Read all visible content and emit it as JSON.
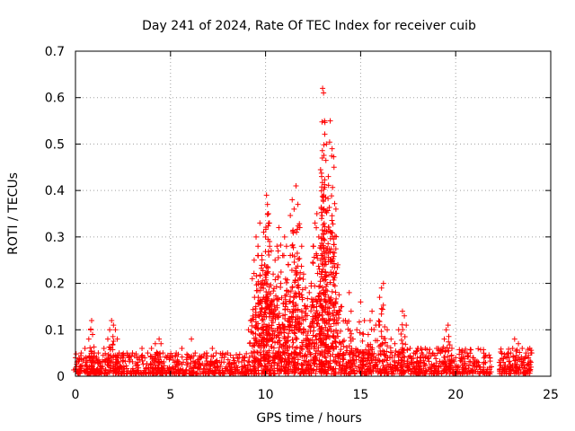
{
  "chart_data": {
    "type": "scatter",
    "title": "Day 241 of 2024, Rate Of TEC Index for receiver cuib",
    "xlabel": "GPS time / hours",
    "ylabel": "ROTI / TECUs",
    "xlim": [
      0,
      25
    ],
    "ylim": [
      0,
      0.7
    ],
    "x_ticks": [
      "0",
      "5",
      "10",
      "15",
      "20",
      "25"
    ],
    "y_ticks": [
      "0",
      "0.1",
      "0.2",
      "0.3",
      "0.4",
      "0.5",
      "0.6",
      "0.7"
    ],
    "grid": true,
    "legend": "none",
    "marker": "+",
    "color": "#ff0000",
    "series": [
      {
        "x": [
          0.0,
          0.3,
          0.5,
          0.7,
          0.8,
          0.85,
          0.9,
          1.0,
          1.2,
          1.5,
          1.7,
          1.8,
          1.9,
          2.0,
          2.1,
          2.2,
          2.3,
          2.5,
          2.8,
          3.0,
          3.3,
          3.5,
          3.8,
          4.0,
          4.2,
          4.4,
          4.5,
          4.6,
          4.8,
          5.0,
          5.3,
          5.6,
          5.9,
          6.1,
          6.3,
          6.6,
          6.9,
          7.2,
          7.4,
          7.7,
          8.0,
          8.3,
          8.6,
          8.9,
          9.1,
          9.3,
          9.4,
          9.5,
          9.6,
          9.7,
          9.8,
          9.9,
          10.0,
          10.05,
          10.1,
          10.15,
          10.2,
          10.3,
          10.4,
          10.5,
          10.6,
          10.7,
          10.8,
          10.9,
          11.0,
          11.1,
          11.2,
          11.3,
          11.4,
          11.5,
          11.6,
          11.7,
          11.8,
          11.9,
          12.0,
          12.1,
          12.2,
          12.3,
          12.4,
          12.5,
          12.6,
          12.7,
          12.8,
          12.9,
          12.95,
          13.0,
          13.05,
          13.1,
          13.2,
          13.3,
          13.4,
          13.5,
          13.6,
          13.7,
          13.8,
          14.0,
          14.2,
          14.4,
          14.5,
          14.6,
          14.8,
          15.0,
          15.2,
          15.4,
          15.5,
          15.6,
          15.8,
          16.0,
          16.1,
          16.2,
          16.4,
          16.6,
          16.8,
          17.0,
          17.2,
          17.3,
          17.4,
          17.6,
          17.8,
          18.0,
          18.2,
          18.4,
          18.6,
          18.8,
          19.0,
          19.2,
          19.4,
          19.5,
          19.6,
          19.8,
          20.0,
          20.3,
          20.6,
          20.9,
          21.2,
          21.5,
          21.8,
          22.3,
          22.5,
          22.7,
          22.9,
          23.0,
          23.1,
          23.3,
          23.5,
          23.7,
          23.9,
          24.0
        ],
        "y": [
          0.04,
          0.05,
          0.06,
          0.08,
          0.1,
          0.12,
          0.09,
          0.05,
          0.05,
          0.06,
          0.08,
          0.1,
          0.12,
          0.11,
          0.1,
          0.08,
          0.05,
          0.04,
          0.04,
          0.05,
          0.04,
          0.06,
          0.05,
          0.06,
          0.07,
          0.08,
          0.07,
          0.05,
          0.04,
          0.04,
          0.05,
          0.06,
          0.04,
          0.08,
          0.05,
          0.04,
          0.05,
          0.06,
          0.05,
          0.04,
          0.05,
          0.04,
          0.04,
          0.04,
          0.1,
          0.21,
          0.25,
          0.3,
          0.28,
          0.33,
          0.26,
          0.31,
          0.3,
          0.39,
          0.37,
          0.35,
          0.33,
          0.27,
          0.22,
          0.25,
          0.28,
          0.32,
          0.2,
          0.26,
          0.3,
          0.28,
          0.24,
          0.26,
          0.38,
          0.36,
          0.41,
          0.37,
          0.32,
          0.28,
          0.22,
          0.19,
          0.15,
          0.18,
          0.2,
          0.28,
          0.33,
          0.35,
          0.3,
          0.25,
          0.43,
          0.62,
          0.61,
          0.55,
          0.5,
          0.43,
          0.55,
          0.49,
          0.45,
          0.36,
          0.24,
          0.15,
          0.12,
          0.18,
          0.14,
          0.08,
          0.1,
          0.16,
          0.12,
          0.09,
          0.12,
          0.14,
          0.11,
          0.17,
          0.19,
          0.2,
          0.1,
          0.08,
          0.07,
          0.1,
          0.14,
          0.13,
          0.11,
          0.06,
          0.05,
          0.06,
          0.05,
          0.06,
          0.05,
          0.05,
          0.06,
          0.05,
          0.08,
          0.1,
          0.11,
          0.06,
          0.04,
          0.04,
          0.05,
          0.04,
          0.03,
          0.03,
          0.04,
          0.03,
          0.03,
          0.04,
          0.05,
          0.06,
          0.08,
          0.07,
          0.06,
          0.05,
          0.06,
          0.05
        ]
      }
    ],
    "dense_band": {
      "segments": [
        {
          "x": [
            0.0,
            9.2
          ],
          "y": [
            0.005,
            0.05
          ]
        },
        {
          "x": [
            9.2,
            14.0
          ],
          "y": [
            0.005,
            0.17
          ]
        },
        {
          "x": [
            14.0,
            21.9
          ],
          "y": [
            0.005,
            0.06
          ]
        },
        {
          "x": [
            22.3,
            24.0
          ],
          "y": [
            0.005,
            0.06
          ]
        }
      ]
    }
  }
}
